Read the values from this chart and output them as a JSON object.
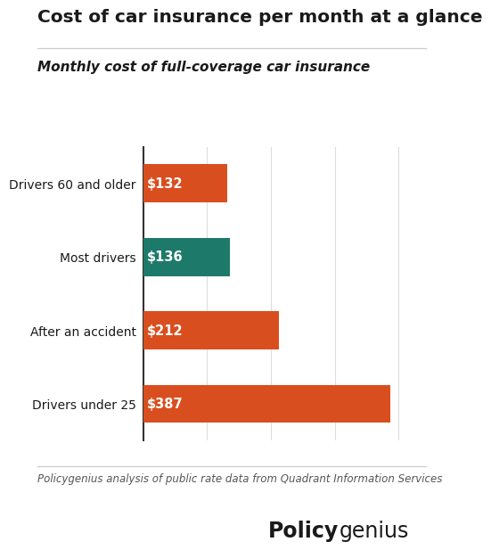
{
  "title": "Cost of car insurance per month at a glance",
  "subtitle": "Monthly cost of full-coverage car insurance",
  "categories": [
    "Drivers under 25",
    "After an accident",
    "Most drivers",
    "Drivers 60 and older"
  ],
  "values": [
    387,
    212,
    136,
    132
  ],
  "labels": [
    "$387",
    "$212",
    "$136",
    "$132"
  ],
  "bar_colors": [
    "#D94E1F",
    "#D94E1F",
    "#1D7A6B",
    "#D94E1F"
  ],
  "footnote": "Policygenius analysis of public rate data from Quadrant Information Services",
  "background_color": "#FFFFFF",
  "label_color": "#FFFFFF",
  "title_color": "#1A1A1A",
  "subtitle_color": "#1A1A1A",
  "xlim": [
    0,
    430
  ],
  "bar_height": 0.52,
  "label_fontsize": 10.5,
  "title_fontsize": 14.5,
  "subtitle_fontsize": 11,
  "footnote_fontsize": 8.5,
  "brand_fontsize": 17,
  "grid_color": "#DDDDDD",
  "spine_color": "#333333"
}
